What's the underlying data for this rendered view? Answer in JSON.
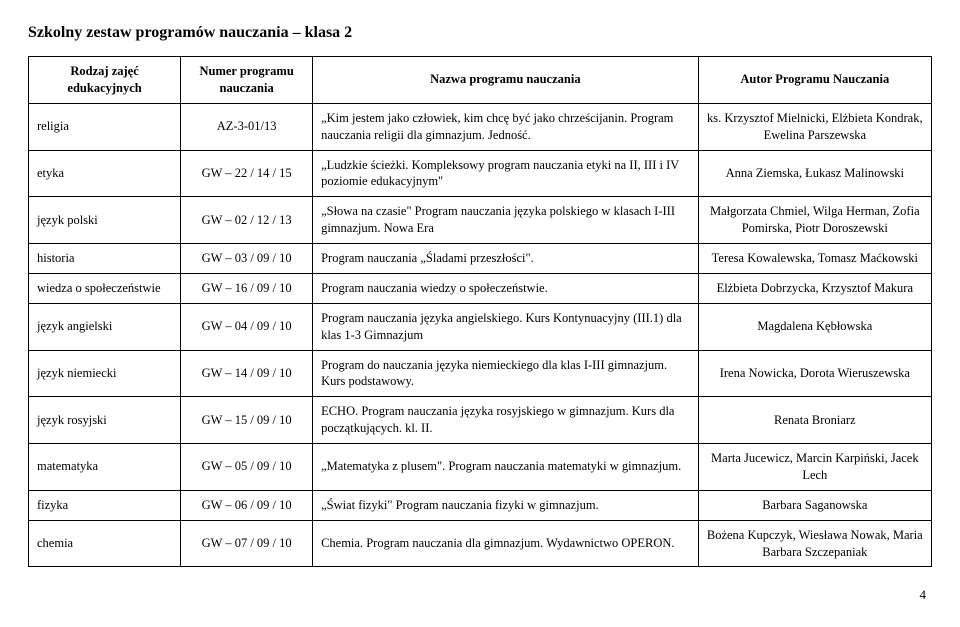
{
  "page": {
    "title": "Szkolny zestaw programów nauczania – klasa 2",
    "page_number": "4"
  },
  "table": {
    "headers": {
      "col1": "Rodzaj zajęć edukacyjnych",
      "col2": "Numer programu nauczania",
      "col3": "Nazwa programu nauczania",
      "col4": "Autor Programu Nauczania"
    },
    "rows": [
      {
        "subject": "religia",
        "number": "AZ-3-01/13",
        "name": "„Kim jestem jako człowiek, kim chcę być jako chrześcijanin. Program nauczania religii dla gimnazjum. Jedność.",
        "author": "ks. Krzysztof Mielnicki, Elżbieta Kondrak, Ewelina Parszewska"
      },
      {
        "subject": "etyka",
        "number": "GW – 22 / 14 / 15",
        "name": "„Ludzkie ścieżki. Kompleksowy program nauczania etyki na II, III i IV poziomie edukacyjnym\"",
        "author": "Anna Ziemska, Łukasz Malinowski"
      },
      {
        "subject": "język polski",
        "number": "GW – 02 / 12 / 13",
        "name": "„Słowa na czasie\" Program nauczania języka polskiego  w klasach I-III gimnazjum. Nowa Era",
        "author": "Małgorzata Chmiel, Wilga Herman, Zofia Pomirska, Piotr Doroszewski"
      },
      {
        "subject": "historia",
        "number": "GW – 03 / 09 / 10",
        "name": "Program nauczania „Śladami przeszłości\".",
        "author": "Teresa Kowalewska, Tomasz Maćkowski"
      },
      {
        "subject": "wiedza o społeczeństwie",
        "number": "GW – 16 / 09 / 10",
        "name": "Program nauczania wiedzy o społeczeństwie.",
        "author": "Elżbieta Dobrzycka, Krzysztof Makura"
      },
      {
        "subject": "język angielski",
        "number": "GW – 04 / 09 / 10",
        "name": "Program nauczania języka angielskiego. Kurs Kontynuacyjny (III.1) dla klas 1-3 Gimnazjum",
        "author": "Magdalena Kębłowska"
      },
      {
        "subject": "język niemiecki",
        "number": "GW – 14 / 09 / 10",
        "name": "Program do nauczania języka niemieckiego dla klas I-III gimnazjum. Kurs podstawowy.",
        "author": "Irena Nowicka, Dorota Wieruszewska"
      },
      {
        "subject": "język rosyjski",
        "number": "GW – 15 / 09 / 10",
        "name": "ECHO. Program nauczania języka rosyjskiego w gimnazjum. Kurs dla początkujących. kl. II.",
        "author": "Renata Broniarz"
      },
      {
        "subject": "matematyka",
        "number": "GW – 05 / 09 / 10",
        "name": "„Matematyka z plusem\". Program nauczania matematyki w gimnazjum.",
        "author": "Marta Jucewicz, Marcin Karpiński, Jacek Lech"
      },
      {
        "subject": "fizyka",
        "number": "GW – 06 / 09 / 10",
        "name": "„Świat fizyki\" Program nauczania fizyki w gimnazjum.",
        "author": "Barbara Saganowska"
      },
      {
        "subject": "chemia",
        "number": "GW – 07 / 09 / 10",
        "name": "Chemia. Program nauczania dla gimnazjum. Wydawnictwo OPERON.",
        "author": "Bożena Kupczyk, Wiesława Nowak, Maria Barbara Szczepaniak"
      }
    ]
  }
}
